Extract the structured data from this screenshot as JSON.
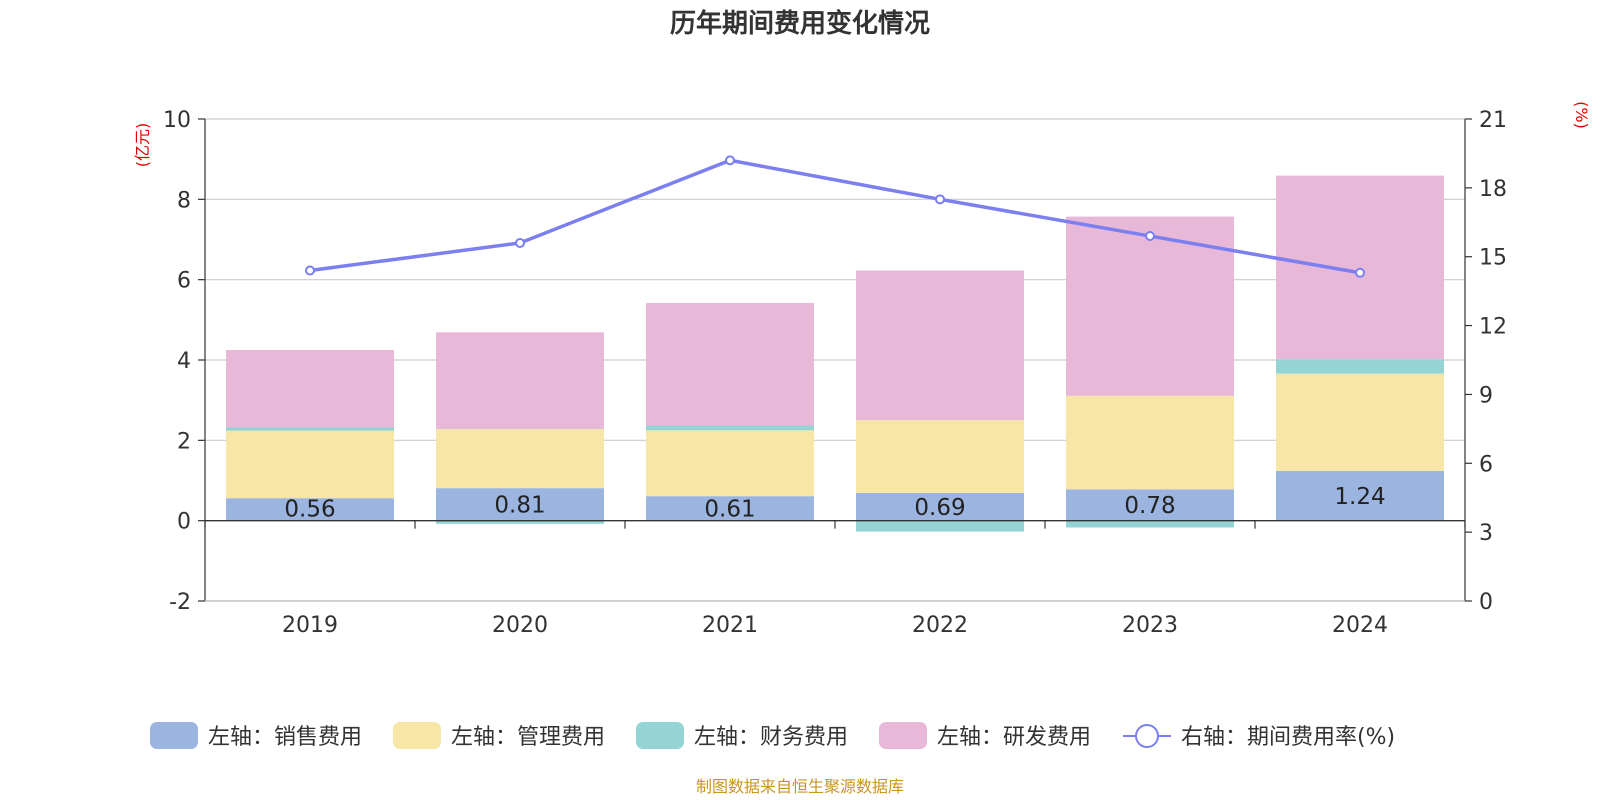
{
  "chart_data": {
    "type": "bar",
    "title": "历年期间费用变化情况",
    "categories": [
      "2019",
      "2020",
      "2021",
      "2022",
      "2023",
      "2024"
    ],
    "y_left": {
      "unit": "(亿元)",
      "ylim": [
        -2,
        10
      ],
      "ticks": [
        -2,
        0,
        2,
        4,
        6,
        8,
        10
      ]
    },
    "y_right": {
      "unit": "(%)",
      "ylim": [
        0,
        21
      ],
      "ticks": [
        0,
        3,
        6,
        9,
        12,
        15,
        18,
        21
      ]
    },
    "stacked": true,
    "series": [
      {
        "name": "左轴：销售费用",
        "axis": "left",
        "type": "bar",
        "color": "#9bb5e0",
        "values": [
          0.56,
          0.81,
          0.61,
          0.69,
          0.78,
          1.24
        ],
        "labels_shown": true
      },
      {
        "name": "左轴：管理费用",
        "axis": "left",
        "type": "bar",
        "color": "#f7e6a6",
        "values": [
          1.68,
          1.47,
          1.64,
          1.81,
          2.33,
          2.42
        ]
      },
      {
        "name": "左轴：财务费用",
        "axis": "left",
        "type": "bar",
        "color": "#94d4d4",
        "values": [
          0.08,
          -0.08,
          0.12,
          -0.27,
          -0.17,
          0.36
        ]
      },
      {
        "name": "左轴：研发费用",
        "axis": "left",
        "type": "bar",
        "color": "#e8b8d8",
        "values": [
          1.93,
          2.41,
          3.05,
          3.73,
          4.46,
          4.57
        ]
      },
      {
        "name": "右轴：期间费用率(%)",
        "axis": "right",
        "type": "line",
        "color": "#7b7ff0",
        "values": [
          14.4,
          15.6,
          19.2,
          17.5,
          15.9,
          14.3
        ]
      }
    ],
    "grid": true,
    "legend_position": "bottom"
  },
  "source_text": "制图数据来自恒生聚源数据库"
}
